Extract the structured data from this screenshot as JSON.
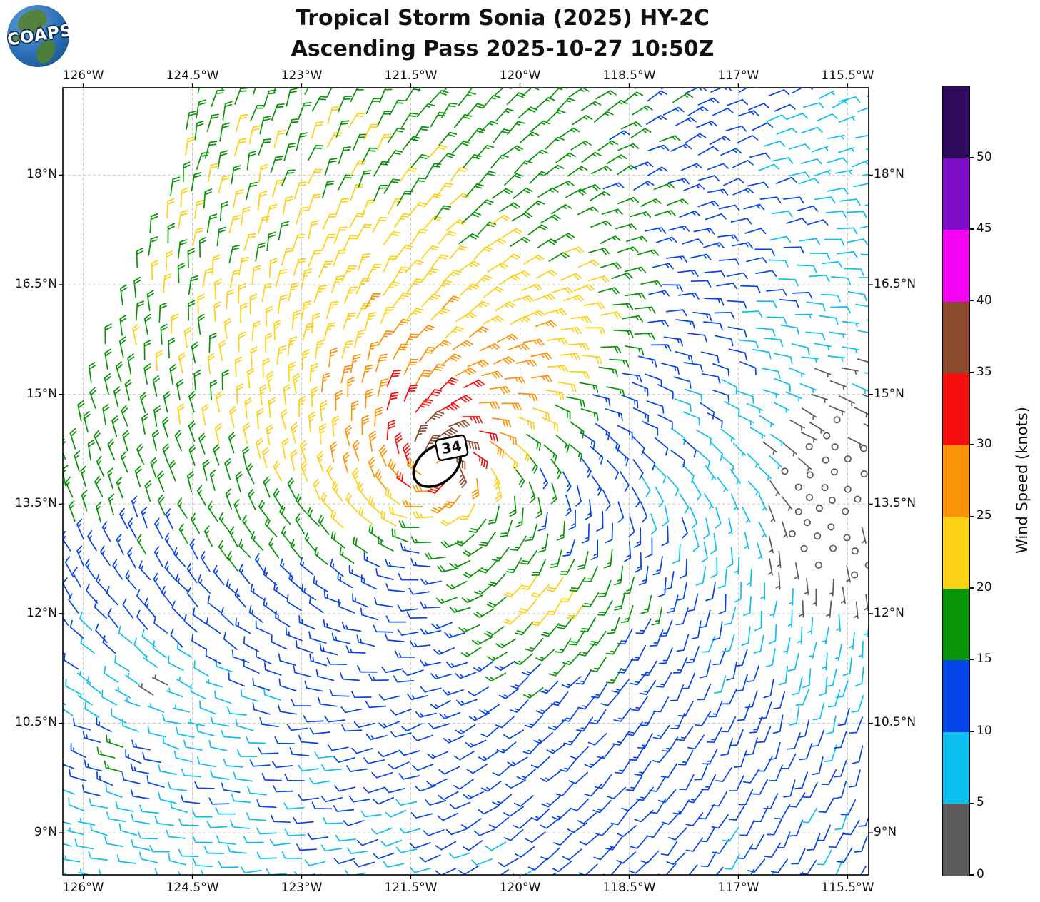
{
  "header": {
    "title_line1": "Tropical Storm Sonia (2025) HY-2C",
    "title_line2": "Ascending Pass 2025-10-27 10:50Z",
    "logo_text": "COAPS"
  },
  "chart_data": {
    "type": "wind_barb_map",
    "title": "Tropical Storm Sonia (2025) HY-2C Ascending Pass 2025-10-27 10:50Z",
    "extent": {
      "lon_min": -126.28,
      "lon_max": -115.21,
      "lat_min": 8.425,
      "lat_max": 19.195
    },
    "x_ticks": {
      "labels": [
        "126°W",
        "124.5°W",
        "123°W",
        "121.5°W",
        "120°W",
        "118.5°W",
        "117°W",
        "115.5°W"
      ],
      "lons": [
        -126,
        -124.5,
        -123,
        -121.5,
        -120,
        -118.5,
        -117,
        -115.5
      ]
    },
    "y_ticks": {
      "labels": [
        "18°N",
        "16.5°N",
        "15°N",
        "13.5°N",
        "12°N",
        "10.5°N",
        "9°N"
      ],
      "lats": [
        18,
        16.5,
        15,
        13.5,
        12,
        10.5,
        9
      ]
    },
    "grid_on": true,
    "colorbar": {
      "label": "Wind Speed (knots)",
      "tick_values": [
        0,
        5,
        10,
        15,
        20,
        25,
        30,
        35,
        40,
        45,
        50
      ],
      "value_max": 55,
      "colors": [
        "#5b5b5b",
        "#0cc0f0",
        "#0645e8",
        "#079407",
        "#fcd116",
        "#fb9207",
        "#f50f0f",
        "#8b4a2d",
        "#f503f5",
        "#7c0cc6",
        "#2e0a5c"
      ]
    },
    "storm": {
      "name": "Sonia",
      "contour": {
        "label": "34",
        "lon": -121.14,
        "lat": 14.03,
        "rx_deg": 0.36,
        "ry_deg": 0.245,
        "rot_deg": -38,
        "label_lon": -120.94,
        "label_lat": 14.27,
        "label_rot_deg": -11
      }
    },
    "grid": {
      "spacing_deg": 0.25,
      "row_angle_deg": 42,
      "pos_jitter_deg": 0.09
    },
    "mask": {
      "empty_above_line": {
        "lon0": -124.9,
        "lat0": 18.0,
        "slope": 2.8
      }
    },
    "wind_model": {
      "comment": "estimated reconstruction of observed field, knots/degrees",
      "center_lon": -121.14,
      "center_lat": 14.03,
      "vmax_kt": 35,
      "rm_deg": 0.42,
      "inner_exp": 0.12,
      "outer_exp": 0.45,
      "inflow_toward_deg": 115,
      "asym_base": 0.18,
      "asym_grow": 0.14,
      "asym_dir_deg": 35,
      "bg_u_kt": 1.5,
      "bg_v_kt": -9,
      "ridge_dir_deg": 50,
      "ridge_amp": 6.5,
      "ridge_w": 0.6,
      "ridge_c": 2.3,
      "ridge_l": 1.3,
      "gaussians": [
        {
          "lon": -119.3,
          "lat": 12.2,
          "sx": 1.25,
          "sy": 0.8,
          "amp": 8
        },
        {
          "lon": -125.55,
          "lat": 10.0,
          "sx": 0.6,
          "sy": 0.45,
          "amp": 8
        },
        {
          "lon": -121.5,
          "lat": 12.4,
          "sx": 0.55,
          "sy": 0.8,
          "amp": -5
        },
        {
          "lon": -115.75,
          "lat": 13.3,
          "sx": 1.1,
          "sy": 2.2,
          "amp": -5.5
        },
        {
          "lon": -115.7,
          "lat": 18.6,
          "sx": 1.0,
          "sy": 1.0,
          "amp": -4
        },
        {
          "lon": -124.9,
          "lat": 10.9,
          "sx": 0.9,
          "sy": 0.5,
          "amp": -5
        }
      ],
      "speed_jitter_kt": 2.6,
      "dir_jitter_deg": 16
    }
  },
  "colors": {
    "gridline": "#c9c9c9",
    "axis": "#000000",
    "contour": "#000000",
    "background": "#ffffff"
  }
}
